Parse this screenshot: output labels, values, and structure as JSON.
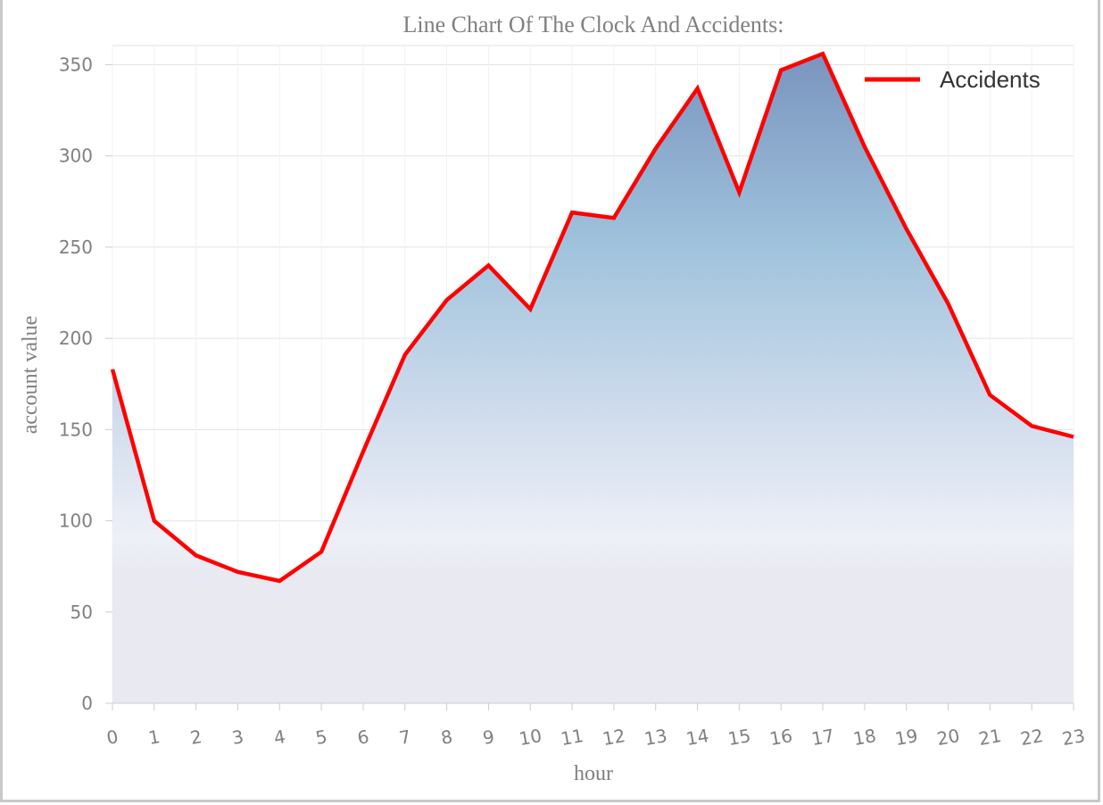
{
  "chart_data": {
    "type": "area",
    "title": "Line Chart Of The Clock And Accidents:",
    "xlabel": "hour",
    "ylabel": "account value",
    "categories": [
      "0",
      "1",
      "2",
      "3",
      "4",
      "5",
      "6",
      "7",
      "8",
      "9",
      "10",
      "11",
      "12",
      "13",
      "14",
      "15",
      "16",
      "17",
      "18",
      "19",
      "20",
      "21",
      "22",
      "23"
    ],
    "series": [
      {
        "name": "Accidents",
        "color": "#ff0000",
        "values": [
          183,
          100,
          81,
          72,
          67,
          83,
          138,
          191,
          221,
          240,
          216,
          269,
          266,
          304,
          337,
          280,
          347,
          356,
          305,
          260,
          219,
          169,
          152,
          146
        ]
      }
    ],
    "ylim": [
      0,
      360
    ],
    "yticks": [
      0,
      50,
      100,
      150,
      200,
      250,
      300,
      350
    ],
    "grid": true,
    "legend_position": "top-right",
    "area_gradient": [
      "#7e9ec7",
      "#a8c8e0",
      "#dde6f2",
      "#f0f0f6",
      "#e8e8f0"
    ]
  }
}
